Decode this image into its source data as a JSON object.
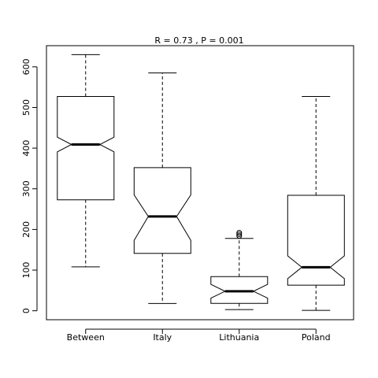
{
  "chart_data": {
    "type": "boxplot",
    "title": "R = 0.73 , P = 0.001",
    "xlabel": "",
    "ylabel": "",
    "ylim": [
      -22,
      652
    ],
    "yticks": [
      0,
      100,
      200,
      300,
      400,
      500,
      600
    ],
    "categories": [
      "Between",
      "Italy",
      "Lithuania",
      "Poland"
    ],
    "boxes": [
      {
        "name": "Between",
        "whisker_low": 108,
        "q1": 273,
        "median": 409,
        "q3": 527,
        "whisker_high": 630,
        "notch_low": 391,
        "notch_high": 427,
        "outliers": []
      },
      {
        "name": "Italy",
        "whisker_low": 18,
        "q1": 141,
        "median": 232,
        "q3": 352,
        "whisker_high": 585,
        "notch_low": 173,
        "notch_high": 285,
        "outliers": []
      },
      {
        "name": "Lithuania",
        "whisker_low": 3,
        "q1": 18,
        "median": 48,
        "q3": 84,
        "whisker_high": 178,
        "notch_low": 31,
        "notch_high": 65,
        "outliers": [
          184,
          188,
          192
        ]
      },
      {
        "name": "Poland",
        "whisker_low": 1,
        "q1": 63,
        "median": 107,
        "q3": 284,
        "whisker_high": 527,
        "notch_low": 79,
        "notch_high": 135,
        "outliers": []
      }
    ],
    "grid": false,
    "legend": "none"
  }
}
